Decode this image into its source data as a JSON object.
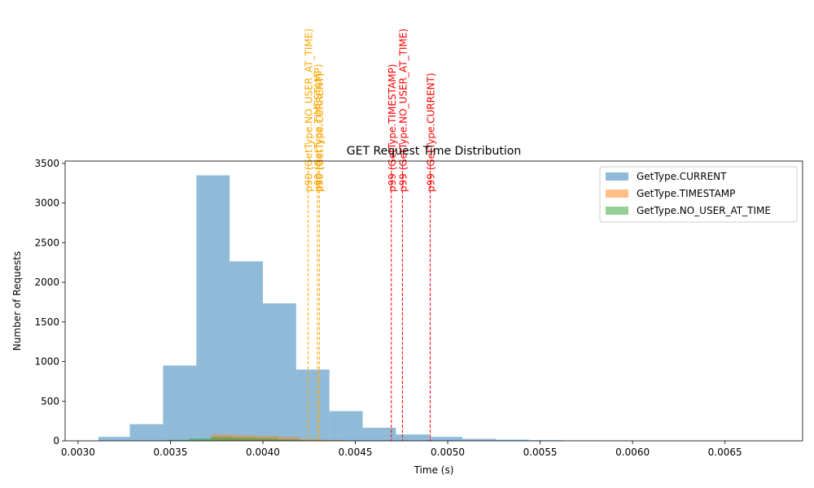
{
  "chart_data": {
    "type": "histogram",
    "title": "GET Request Time Distribution",
    "xlabel": "Time (s)",
    "ylabel": "Number of Requests",
    "xlim": [
      0.00293,
      0.00692
    ],
    "ylim": [
      0,
      3530
    ],
    "x_ticks": [
      "0.0030",
      "0.0035",
      "0.0040",
      "0.0045",
      "0.0050",
      "0.0055",
      "0.0060",
      "0.0065"
    ],
    "x_tick_values": [
      0.003,
      0.0035,
      0.004,
      0.0045,
      0.005,
      0.0055,
      0.006,
      0.0065
    ],
    "y_ticks": [
      "0",
      "500",
      "1000",
      "1500",
      "2000",
      "2500",
      "3000",
      "3500"
    ],
    "y_tick_values": [
      0,
      500,
      1000,
      1500,
      2000,
      2500,
      3000,
      3500
    ],
    "legend_position": "top-right",
    "series": [
      {
        "name": "GetType.CURRENT",
        "color": "#1f77b4",
        "bins": [
          {
            "x0": 0.00311,
            "x1": 0.00328,
            "count": 50
          },
          {
            "x0": 0.00328,
            "x1": 0.00346,
            "count": 210
          },
          {
            "x0": 0.00346,
            "x1": 0.00364,
            "count": 950
          },
          {
            "x0": 0.00364,
            "x1": 0.00382,
            "count": 3350
          },
          {
            "x0": 0.00382,
            "x1": 0.004,
            "count": 2265
          },
          {
            "x0": 0.004,
            "x1": 0.00418,
            "count": 1735
          },
          {
            "x0": 0.00418,
            "x1": 0.00436,
            "count": 900
          },
          {
            "x0": 0.00436,
            "x1": 0.00454,
            "count": 375
          },
          {
            "x0": 0.00454,
            "x1": 0.00472,
            "count": 165
          },
          {
            "x0": 0.00472,
            "x1": 0.0049,
            "count": 80
          },
          {
            "x0": 0.0049,
            "x1": 0.00508,
            "count": 50
          },
          {
            "x0": 0.00508,
            "x1": 0.00526,
            "count": 25
          },
          {
            "x0": 0.00526,
            "x1": 0.00544,
            "count": 15
          },
          {
            "x0": 0.00544,
            "x1": 0.00562,
            "count": 8
          },
          {
            "x0": 0.00562,
            "x1": 0.0058,
            "count": 5
          },
          {
            "x0": 0.0058,
            "x1": 0.00598,
            "count": 4
          },
          {
            "x0": 0.00598,
            "x1": 0.00616,
            "count": 2
          },
          {
            "x0": 0.00616,
            "x1": 0.00634,
            "count": 1
          },
          {
            "x0": 0.00634,
            "x1": 0.00652,
            "count": 1
          },
          {
            "x0": 0.00652,
            "x1": 0.0067,
            "count": 1
          }
        ]
      },
      {
        "name": "GetType.TIMESTAMP",
        "color": "#ff7f0e",
        "bins": [
          {
            "x0": 0.0036,
            "x1": 0.00372,
            "count": 5
          },
          {
            "x0": 0.00372,
            "x1": 0.00384,
            "count": 78
          },
          {
            "x0": 0.00384,
            "x1": 0.00396,
            "count": 68
          },
          {
            "x0": 0.00396,
            "x1": 0.00408,
            "count": 60
          },
          {
            "x0": 0.00408,
            "x1": 0.0042,
            "count": 48
          },
          {
            "x0": 0.0042,
            "x1": 0.00432,
            "count": 22
          },
          {
            "x0": 0.00432,
            "x1": 0.00444,
            "count": 10
          },
          {
            "x0": 0.00444,
            "x1": 0.00456,
            "count": 4
          },
          {
            "x0": 0.00456,
            "x1": 0.00468,
            "count": 3
          },
          {
            "x0": 0.00468,
            "x1": 0.0048,
            "count": 2
          }
        ]
      },
      {
        "name": "GetType.NO_USER_AT_TIME",
        "color": "#2ca02c",
        "bins": [
          {
            "x0": 0.00348,
            "x1": 0.0036,
            "count": 12
          },
          {
            "x0": 0.0036,
            "x1": 0.00372,
            "count": 28
          },
          {
            "x0": 0.00372,
            "x1": 0.00384,
            "count": 45
          },
          {
            "x0": 0.00384,
            "x1": 0.00396,
            "count": 38
          },
          {
            "x0": 0.00396,
            "x1": 0.00408,
            "count": 30
          },
          {
            "x0": 0.00408,
            "x1": 0.0042,
            "count": 18
          },
          {
            "x0": 0.0042,
            "x1": 0.00432,
            "count": 8
          },
          {
            "x0": 0.00432,
            "x1": 0.00444,
            "count": 4
          }
        ]
      }
    ],
    "vlines": [
      {
        "label": "p90 (GetType.NO_USER_AT_TIME)",
        "x": 0.004245,
        "color": "#ffa500"
      },
      {
        "label": "p90 (GetType.TIMESTAMP)",
        "x": 0.004295,
        "color": "#ffa500"
      },
      {
        "label": "p90 (GetType.CURRENT)",
        "x": 0.004305,
        "color": "#ffa500"
      },
      {
        "label": "p99 (GetType.TIMESTAMP)",
        "x": 0.004695,
        "color": "#ff0000"
      },
      {
        "label": "p99 (GetType.NO_USER_AT_TIME)",
        "x": 0.004755,
        "color": "#ff0000"
      },
      {
        "label": "p99 (GetType.CURRENT)",
        "x": 0.004905,
        "color": "#ff0000"
      }
    ]
  }
}
